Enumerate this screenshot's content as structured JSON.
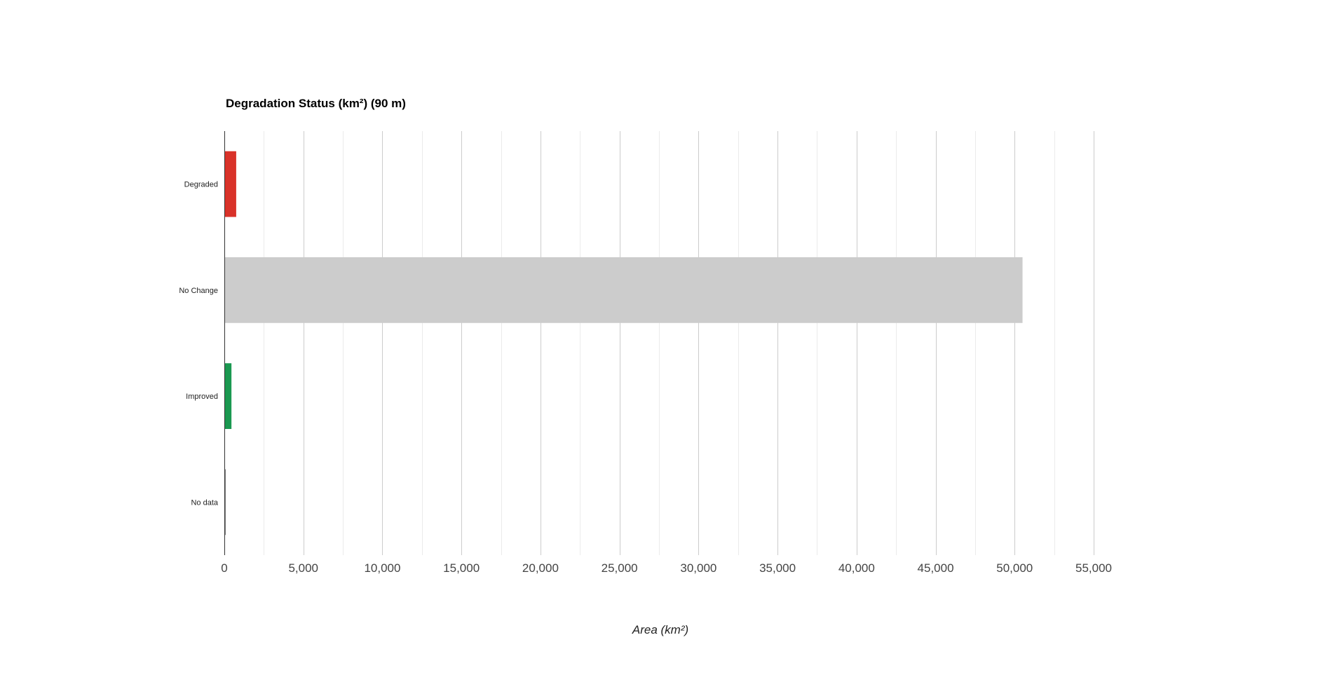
{
  "chart_data": {
    "type": "bar",
    "orientation": "horizontal",
    "title": "Degradation Status (km²) (90 m)",
    "xlabel": "Area (km²)",
    "ylabel": "",
    "categories": [
      "Degraded",
      "No Change",
      "Improved",
      "No data"
    ],
    "values": [
      750,
      50500,
      450,
      40
    ],
    "colors": [
      "#d93229",
      "#cccccc",
      "#1a9850",
      "#000000"
    ],
    "xlim": [
      0,
      55000
    ],
    "xticks": [
      0,
      5000,
      10000,
      15000,
      20000,
      25000,
      30000,
      35000,
      40000,
      45000,
      50000,
      55000
    ],
    "xtick_labels": [
      "0",
      "5,000",
      "10,000",
      "15,000",
      "20,000",
      "25,000",
      "30,000",
      "35,000",
      "40,000",
      "45,000",
      "50,000",
      "55,000"
    ],
    "minor_gridlines": true,
    "grid": true,
    "legend": "none"
  }
}
